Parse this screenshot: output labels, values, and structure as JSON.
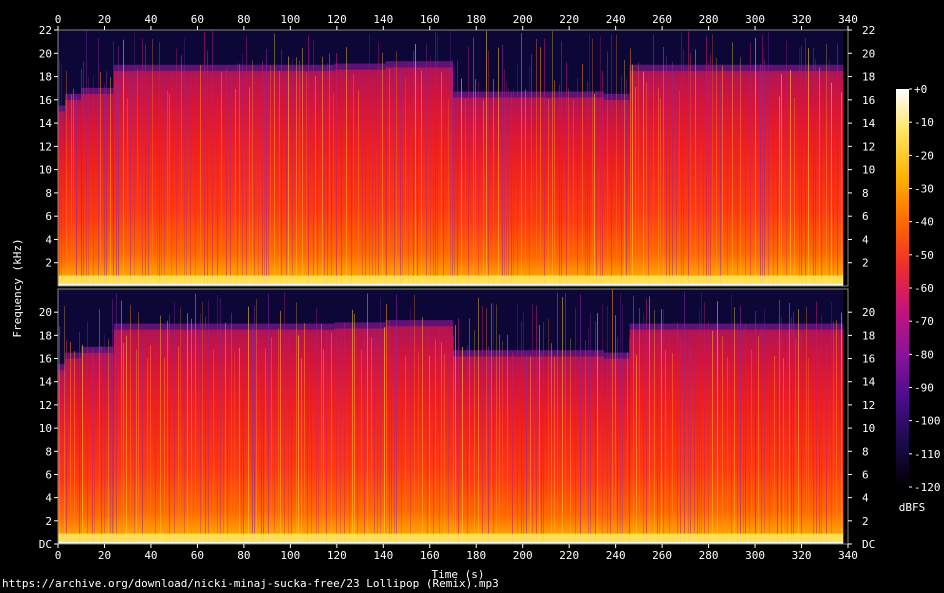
{
  "chart_data": {
    "type": "heatmap",
    "title": "",
    "xlabel": "Time (s)",
    "ylabel": "Frequency (kHz)",
    "xlim": [
      0,
      340
    ],
    "ylim": [
      0,
      22
    ],
    "x_ticks": [
      "0",
      "20",
      "40",
      "60",
      "80",
      "100",
      "120",
      "140",
      "160",
      "180",
      "200",
      "220",
      "240",
      "260",
      "280",
      "300",
      "320",
      "340"
    ],
    "y_ticks_top": [
      "2",
      "4",
      "6",
      "8",
      "10",
      "12",
      "14",
      "16",
      "18",
      "20",
      "22"
    ],
    "y_ticks_bottom": [
      "DC",
      "2",
      "4",
      "6",
      "8",
      "10",
      "12",
      "14",
      "16",
      "18",
      "20"
    ],
    "channels": 2,
    "colorbar": {
      "label": "dBFS",
      "ticks": [
        "+0",
        "-10",
        "-20",
        "-30",
        "-40",
        "-50",
        "-60",
        "-70",
        "-80",
        "-90",
        "-100",
        "-110",
        "-120"
      ],
      "range": [
        -120,
        0
      ],
      "colors": [
        "#000000",
        "#1a0a4a",
        "#4b0c8c",
        "#8a139a",
        "#c4137c",
        "#ee2d2d",
        "#ff6a00",
        "#ffb200",
        "#ffe35a",
        "#ffffff"
      ]
    },
    "segments": [
      {
        "t": [
          0,
          3
        ],
        "cutoff_khz": 15.0
      },
      {
        "t": [
          3,
          10
        ],
        "cutoff_khz": 16.0
      },
      {
        "t": [
          10,
          24
        ],
        "cutoff_khz": 16.5
      },
      {
        "t": [
          24,
          119
        ],
        "cutoff_khz": 18.5
      },
      {
        "t": [
          119,
          141
        ],
        "cutoff_khz": 18.6
      },
      {
        "t": [
          141,
          170
        ],
        "cutoff_khz": 18.8
      },
      {
        "t": [
          170,
          235
        ],
        "cutoff_khz": 16.2
      },
      {
        "t": [
          235,
          246
        ],
        "cutoff_khz": 16.0
      },
      {
        "t": [
          246,
          338
        ],
        "cutoff_khz": 18.5
      }
    ],
    "duration_s": 338
  },
  "footer": {
    "source": "https://archive.org/download/nicki-minaj-sucka-free/23 Lollipop (Remix).mp3"
  }
}
